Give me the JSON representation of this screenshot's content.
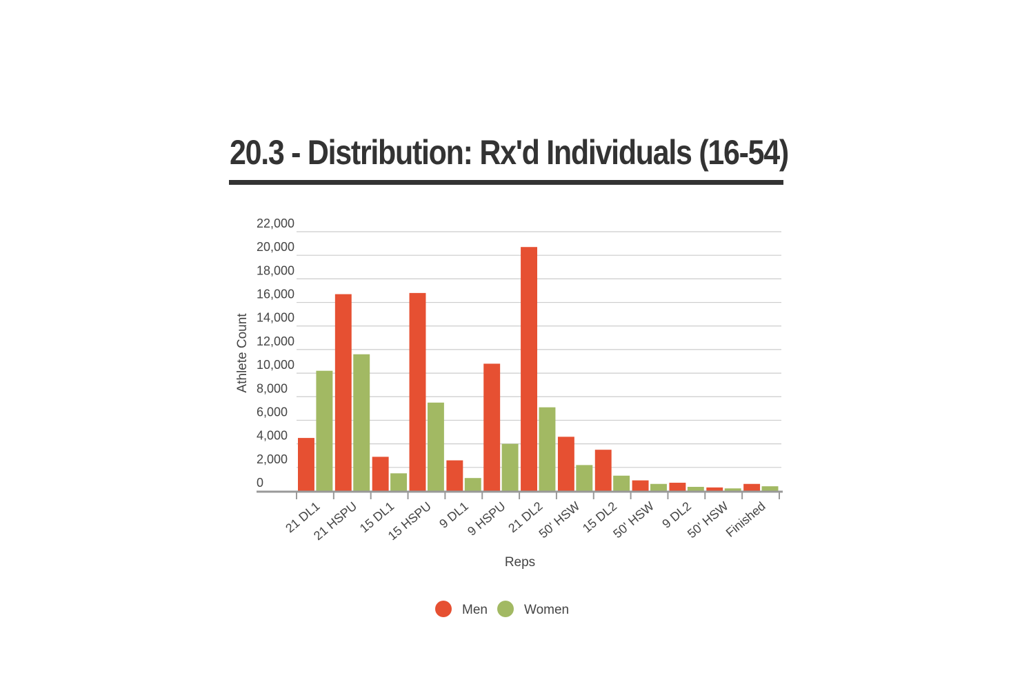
{
  "chart_data": {
    "type": "bar",
    "title": "20.3 - Distribution: Rx'd Individuals (16-54)",
    "xlabel": "Reps",
    "ylabel": "Athlete Count",
    "ylim": [
      0,
      22000
    ],
    "yticks": [
      "0",
      "2,000",
      "4,000",
      "6,000",
      "8,000",
      "10,000",
      "12,000",
      "14,000",
      "16,000",
      "18,000",
      "20,000",
      "22,000"
    ],
    "grid": true,
    "legend": "bottom-center",
    "categories": [
      "21 DL1",
      "21 HSPU",
      "15 DL1",
      "15 HSPU",
      "9 DL1",
      "9 HSPU",
      "21 DL2",
      "50' HSW",
      "15 DL2",
      "50' HSW",
      "9 DL2",
      "50' HSW",
      "Finished"
    ],
    "series": [
      {
        "name": "Men",
        "color": "#e65032",
        "values": [
          4500,
          16700,
          2900,
          16800,
          2600,
          10800,
          20700,
          4600,
          3500,
          900,
          700,
          300,
          600
        ]
      },
      {
        "name": "Women",
        "color": "#a2b963",
        "values": [
          10200,
          11600,
          1500,
          7500,
          1100,
          4000,
          7100,
          2200,
          1300,
          600,
          350,
          220,
          400
        ]
      }
    ]
  }
}
